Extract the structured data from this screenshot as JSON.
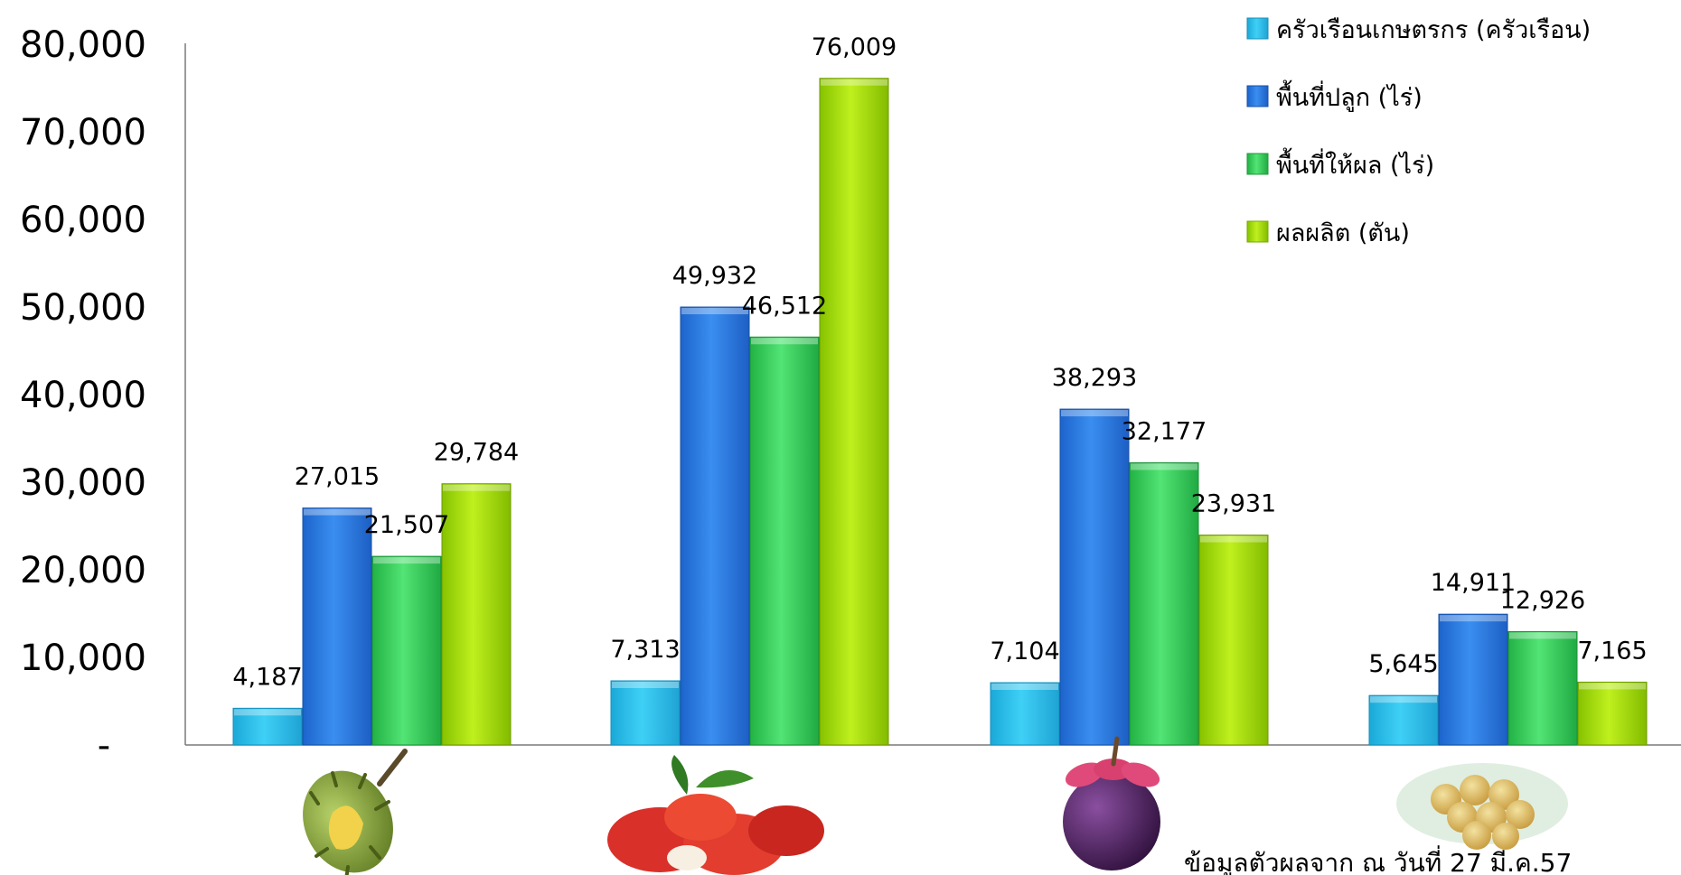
{
  "chart_data": {
    "type": "bar",
    "y_ticks": [
      "80,000",
      "70,000",
      "60,000",
      "50,000",
      "40,000",
      "30,000",
      "20,000",
      "10,000",
      "-"
    ],
    "ylim": [
      0,
      80000
    ],
    "grid": false,
    "legend_position": "top-right",
    "categories": [
      "",
      "",
      "",
      ""
    ],
    "category_icons": [
      "durian-icon",
      "rambutan-icon",
      "mangosteen-icon",
      "longkong-icon"
    ],
    "series": [
      {
        "name": "ครัวเรือนเกษตรกร (ครัวเรือน)",
        "color": "#2ec4ee",
        "values": [
          4187,
          7313,
          7104,
          5645
        ],
        "labels": [
          "4,187",
          "7,313",
          "7,104",
          "5,645"
        ]
      },
      {
        "name": "พื้นที่ปลูก (ไร่)",
        "color": "#2f7fe6",
        "values": [
          27015,
          49932,
          38293,
          14911
        ],
        "labels": [
          "27,015",
          "49,932",
          "38,293",
          "14,911"
        ]
      },
      {
        "name": "พื้นที่ให้ผล (ไร่)",
        "color": "#3dd45e",
        "values": [
          21507,
          46512,
          32177,
          12926
        ],
        "labels": [
          "21,507",
          "46,512",
          "32,177",
          "12,926"
        ]
      },
      {
        "name": "ผลผลิต (ตัน)",
        "color": "#a8e010",
        "values": [
          29784,
          76009,
          23931,
          7165
        ],
        "labels": [
          "29,784",
          "76,009",
          "23,931",
          "7,165"
        ]
      }
    ],
    "note": "ข้อมูลตัวผลจาก ณ วันที่ 27 มี.ค.57"
  }
}
